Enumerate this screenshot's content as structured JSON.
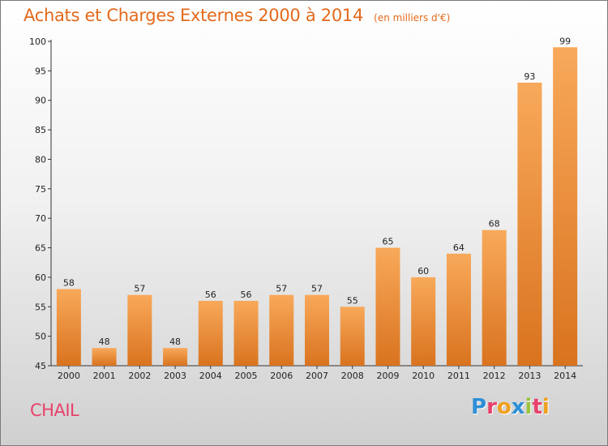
{
  "header": {
    "title": "Achats et Charges Externes 2000 à 2014",
    "subtitle": "(en milliers d'€)"
  },
  "footer": {
    "commune": "CHAIL",
    "logo_text": "Proxiti",
    "logo_colors": [
      "#2d8fd6",
      "#e8416b",
      "#f0a020",
      "#2d8fd6",
      "#9ac43c",
      "#e8416b",
      "#f0a020"
    ]
  },
  "colors": {
    "title": "#e36a1c",
    "bar_light": "#f8a95a",
    "bar_dark": "#d9731f",
    "axis": "#333333"
  },
  "chart_data": {
    "type": "bar",
    "categories": [
      "2000",
      "2001",
      "2002",
      "2003",
      "2004",
      "2005",
      "2006",
      "2007",
      "2008",
      "2009",
      "2010",
      "2011",
      "2012",
      "2013",
      "2014"
    ],
    "values": [
      58,
      48,
      57,
      48,
      56,
      56,
      57,
      57,
      55,
      65,
      60,
      64,
      68,
      93,
      99
    ],
    "ylim": [
      45,
      100
    ],
    "yticks": [
      45,
      50,
      55,
      60,
      65,
      70,
      75,
      80,
      85,
      90,
      95,
      100
    ],
    "grid": false,
    "title": "Achats et Charges Externes 2000 à 2014",
    "xlabel": "",
    "ylabel": ""
  }
}
